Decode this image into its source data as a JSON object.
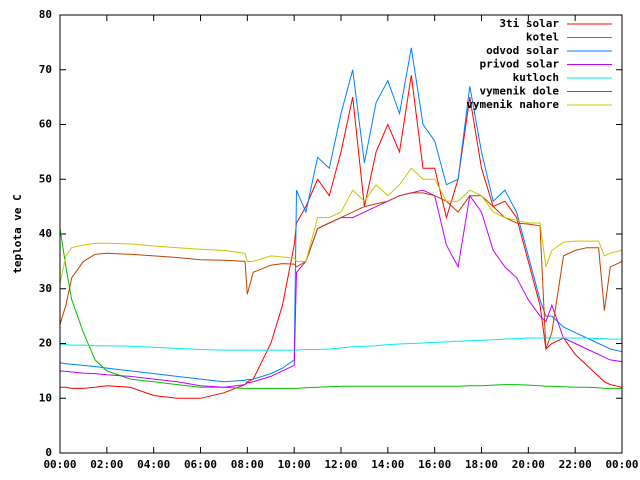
{
  "chart_data": {
    "type": "line",
    "ylabel": "teplota ve C",
    "x": [
      0,
      0.25,
      0.5,
      1,
      1.5,
      2,
      3,
      4,
      5,
      6,
      7,
      7.9,
      8,
      8.25,
      9,
      9.5,
      10,
      10.1,
      10.5,
      11,
      11.5,
      12,
      12.5,
      13,
      13.5,
      14,
      14.5,
      15,
      15.5,
      16,
      16.5,
      17,
      17.5,
      18,
      18.5,
      19,
      19.5,
      20,
      20.5,
      20.75,
      21,
      21.5,
      22,
      22.5,
      23,
      23.25,
      23.5,
      24
    ],
    "xlim": [
      0,
      24
    ],
    "xticks": [
      {
        "value": 0,
        "label": "00:00"
      },
      {
        "value": 2,
        "label": "02:00"
      },
      {
        "value": 4,
        "label": "04:00"
      },
      {
        "value": 6,
        "label": "06:00"
      },
      {
        "value": 8,
        "label": "08:00"
      },
      {
        "value": 10,
        "label": "10:00"
      },
      {
        "value": 12,
        "label": "12:00"
      },
      {
        "value": 14,
        "label": "14:00"
      },
      {
        "value": 16,
        "label": "16:00"
      },
      {
        "value": 18,
        "label": "18:00"
      },
      {
        "value": 20,
        "label": "20:00"
      },
      {
        "value": 22,
        "label": "22:00"
      },
      {
        "value": 24,
        "label": "00:00"
      }
    ],
    "ylim": [
      0,
      80
    ],
    "yticks": [
      0,
      10,
      20,
      30,
      40,
      50,
      60,
      70,
      80
    ],
    "legend": "top-right",
    "series": [
      {
        "name": "3ti solar",
        "color": "#ff0000",
        "values": [
          12,
          12,
          11.8,
          11.8,
          12,
          12.3,
          12,
          10.5,
          10,
          10,
          11,
          12.5,
          13,
          13.5,
          20,
          27,
          38,
          42,
          45,
          50,
          47,
          55,
          65,
          45,
          55,
          60,
          55,
          69,
          52,
          52,
          43,
          50,
          65,
          52,
          45,
          46,
          43,
          35,
          27,
          19,
          20,
          21,
          18,
          16,
          14,
          13,
          12.5,
          12
        ]
      },
      {
        "name": "kotel",
        "color": "#00c000",
        "values": [
          41,
          34,
          28,
          22,
          17,
          15,
          13.5,
          13,
          12.5,
          12,
          12,
          11.8,
          11.8,
          11.8,
          11.8,
          11.8,
          11.8,
          11.8,
          11.9,
          12,
          12.1,
          12.2,
          12.2,
          12.2,
          12.2,
          12.2,
          12.2,
          12.2,
          12.2,
          12.2,
          12.2,
          12.2,
          12.3,
          12.3,
          12.4,
          12.5,
          12.5,
          12.4,
          12.3,
          12.2,
          12.2,
          12.1,
          12,
          12,
          11.9,
          11.8,
          11.8,
          11.8
        ]
      },
      {
        "name": "odvod solar",
        "color": "#0080ff",
        "values": [
          16.5,
          16.3,
          16.2,
          16,
          15.8,
          15.5,
          15,
          14.5,
          14,
          13.5,
          13,
          13.3,
          13.4,
          13.5,
          14.5,
          15.5,
          17,
          48,
          44,
          54,
          52,
          62,
          70,
          53,
          64,
          68,
          62,
          74,
          60,
          57,
          49,
          50,
          67,
          55,
          46,
          48,
          44,
          36,
          28,
          25,
          25,
          23,
          22,
          21,
          20,
          19.5,
          19,
          18.5
        ]
      },
      {
        "name": "privod solar",
        "color": "#c000ff",
        "values": [
          15,
          14.9,
          14.8,
          14.6,
          14.5,
          14.3,
          14,
          13.5,
          13,
          12.3,
          12,
          12.5,
          12.8,
          13,
          14,
          15,
          16,
          33,
          35,
          41,
          42,
          43,
          43,
          44,
          45,
          46,
          47,
          47.5,
          48,
          47,
          38,
          34,
          47,
          44,
          37,
          34,
          32,
          28,
          25,
          24,
          27,
          21,
          20,
          19,
          18,
          17.5,
          17,
          16.7
        ]
      },
      {
        "name": "kutloch",
        "color": "#00eeee",
        "values": [
          19.8,
          19.8,
          19.7,
          19.7,
          19.6,
          19.6,
          19.5,
          19.3,
          19.1,
          18.9,
          18.8,
          18.8,
          18.8,
          18.8,
          18.8,
          18.8,
          18.8,
          18.8,
          18.9,
          18.9,
          19,
          19.2,
          19.4,
          19.5,
          19.6,
          19.8,
          19.9,
          20,
          20.1,
          20.2,
          20.3,
          20.4,
          20.5,
          20.6,
          20.7,
          20.8,
          20.9,
          21,
          21,
          21,
          21,
          21,
          21,
          21,
          20.9,
          20.9,
          20.8,
          20.8
        ]
      },
      {
        "name": "vymenik dole",
        "color": "#c04000",
        "values": [
          23.5,
          27,
          32,
          35,
          36.3,
          36.5,
          36.3,
          36,
          35.7,
          35.3,
          35.2,
          35,
          29,
          33,
          34.3,
          34.6,
          34.5,
          34,
          35,
          41,
          42,
          43,
          44,
          45,
          45.5,
          46,
          47,
          47.5,
          47.5,
          47,
          46,
          44,
          47,
          47,
          45,
          43,
          42,
          41.8,
          41.5,
          19,
          22,
          36,
          37,
          37.5,
          37.5,
          26,
          34,
          35
        ]
      },
      {
        "name": "vymenik nahore",
        "color": "#c8c800",
        "values": [
          31,
          36,
          37.5,
          38,
          38.3,
          38.3,
          38.2,
          37.8,
          37.5,
          37.2,
          37,
          36.5,
          35,
          35,
          36,
          35.8,
          35.6,
          35,
          35,
          43,
          43,
          44,
          48,
          46,
          49,
          47,
          49,
          52,
          50,
          50,
          46,
          46,
          48,
          47,
          44,
          43,
          42.5,
          42,
          42,
          34,
          37,
          38.5,
          38.7,
          38.7,
          38.7,
          36,
          36.5,
          37
        ]
      }
    ]
  }
}
